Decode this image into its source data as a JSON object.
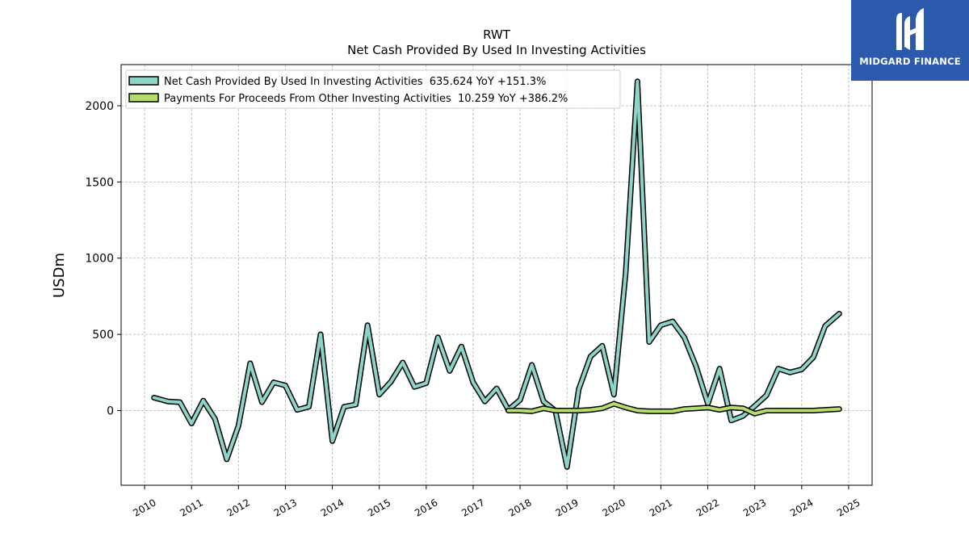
{
  "brand": {
    "name": "MIDGARD FINANCE",
    "bg_color": "#2b5aad",
    "icon": "midgard-logo-icon"
  },
  "chart_data": {
    "type": "line",
    "title": "RWT",
    "subtitle": "Net Cash Provided By Used In Investing Activities",
    "ylabel": "USDm",
    "xlabel": "",
    "ylim": [
      -490,
      2270
    ],
    "xlim": [
      2009.5,
      2025.5
    ],
    "yticks": [
      0,
      500,
      1000,
      1500,
      2000
    ],
    "xticks": [
      "2010",
      "2011",
      "2012",
      "2013",
      "2014",
      "2015",
      "2016",
      "2017",
      "2018",
      "2019",
      "2020",
      "2021",
      "2022",
      "2023",
      "2024",
      "2025"
    ],
    "grid": true,
    "legend_position": "top-left",
    "series": [
      {
        "name": "Net Cash Provided By Used In Investing Activities  635.624 YoY +151.3%",
        "color": "#8dd3c7",
        "x": [
          2010.2,
          2010.5,
          2010.75,
          2011.0,
          2011.25,
          2011.5,
          2011.75,
          2012.0,
          2012.25,
          2012.5,
          2012.75,
          2013.0,
          2013.25,
          2013.5,
          2013.75,
          2014.0,
          2014.25,
          2014.5,
          2014.75,
          2015.0,
          2015.25,
          2015.5,
          2015.75,
          2016.0,
          2016.25,
          2016.5,
          2016.75,
          2017.0,
          2017.25,
          2017.5,
          2017.75,
          2018.0,
          2018.25,
          2018.5,
          2018.75,
          2019.0,
          2019.25,
          2019.5,
          2019.75,
          2020.0,
          2020.25,
          2020.5,
          2020.75,
          2021.0,
          2021.25,
          2021.5,
          2021.75,
          2022.0,
          2022.25,
          2022.5,
          2022.75,
          2023.0,
          2023.25,
          2023.5,
          2023.75,
          2024.0,
          2024.25,
          2024.5,
          2024.8
        ],
        "values": [
          85,
          60,
          55,
          -85,
          65,
          -55,
          -320,
          -100,
          310,
          55,
          185,
          165,
          5,
          25,
          500,
          -200,
          25,
          40,
          560,
          105,
          190,
          315,
          155,
          180,
          480,
          260,
          420,
          185,
          60,
          145,
          5,
          70,
          300,
          60,
          0,
          -370,
          140,
          355,
          425,
          105,
          900,
          2160,
          450,
          560,
          585,
          480,
          290,
          45,
          275,
          -65,
          -35,
          30,
          100,
          275,
          250,
          270,
          350,
          555,
          635.624
        ]
      },
      {
        "name": "Payments For Proceeds From Other Investing Activities  10.259 YoY +386.2%",
        "color": "#b3de69",
        "x": [
          2017.75,
          2018.0,
          2018.25,
          2018.5,
          2018.75,
          2019.0,
          2019.25,
          2019.5,
          2019.75,
          2020.0,
          2020.25,
          2020.5,
          2020.75,
          2021.0,
          2021.25,
          2021.5,
          2021.75,
          2022.0,
          2022.25,
          2022.5,
          2022.75,
          2023.0,
          2023.25,
          2023.5,
          2023.75,
          2024.0,
          2024.25,
          2024.5,
          2024.8
        ],
        "values": [
          0,
          0,
          -5,
          15,
          0,
          0,
          0,
          5,
          15,
          45,
          20,
          0,
          -5,
          -5,
          -5,
          10,
          15,
          20,
          5,
          20,
          15,
          -20,
          0,
          0,
          0,
          0,
          0,
          5,
          10.259
        ]
      }
    ]
  }
}
